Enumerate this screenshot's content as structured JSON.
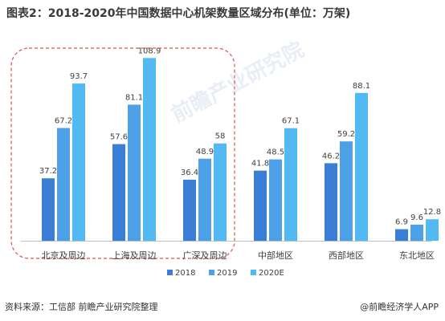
{
  "title": "图表2：2018-2020年中国数据中心机架数量区域分布(单位：万架)",
  "source": "资料来源：工信部 前瞻产业研究院整理",
  "credit": "@前瞻经济学人APP",
  "watermark": "前瞻产业研究院",
  "colors": {
    "s2018": "#3a7fd5",
    "s2019": "#4ba0e8",
    "s2020": "#52b9f3",
    "highlight": "#e0504a",
    "axis": "#bfbfbf",
    "label": "#404040"
  },
  "chart_data": {
    "type": "bar",
    "categories": [
      "北京及周边",
      "上海及周边",
      "广深及周边",
      "中部地区",
      "西部地区",
      "东北地区"
    ],
    "series": [
      {
        "name": "2018",
        "values": [
          37.2,
          57.6,
          36.4,
          41.8,
          46.2,
          6.9
        ]
      },
      {
        "name": "2019",
        "values": [
          67.2,
          81.1,
          48.9,
          48.5,
          59.2,
          9.6
        ]
      },
      {
        "name": "2020E",
        "values": [
          93.7,
          108.9,
          58,
          67.1,
          88.1,
          12.8
        ]
      }
    ],
    "ylim": [
      0,
      110
    ],
    "grid": false,
    "legend_position": "bottom-center",
    "highlighted_categories": [
      "北京及周边",
      "上海及周边",
      "广深及周边"
    ]
  }
}
